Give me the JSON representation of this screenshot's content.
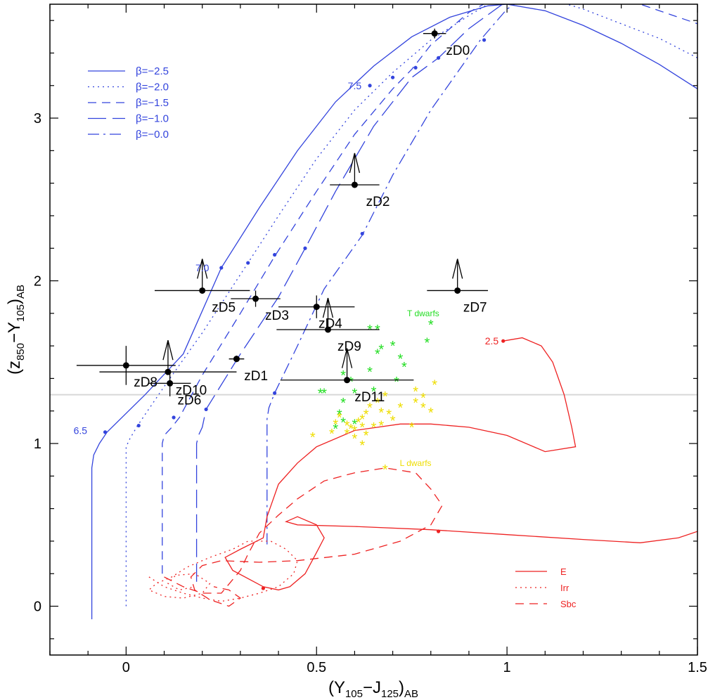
{
  "chart_data": {
    "type": "line",
    "xlabel_main": "(Y",
    "xlabel_sub1": "105",
    "xlabel_mid": "−J",
    "xlabel_sub2": "125",
    "xlabel_close": ")",
    "xlabel_sub3": "AB",
    "ylabel_main": "(z",
    "ylabel_sub1": "850",
    "ylabel_mid": "−Y",
    "ylabel_sub2": "105",
    "ylabel_close": ")",
    "ylabel_sub3": "AB",
    "xlim": [
      -0.2,
      1.5
    ],
    "ylim": [
      -0.3,
      3.7
    ],
    "x_ticks": [
      0,
      0.5,
      1,
      1.5
    ],
    "x_tick_labels": [
      "0",
      "0.5",
      "1",
      "1.5"
    ],
    "y_ticks": [
      0,
      1,
      2,
      3
    ],
    "y_tick_labels": [
      "0",
      "1",
      "2",
      "3"
    ],
    "grid": false,
    "hline": 1.3,
    "colors": {
      "blue": "#3344dd",
      "red": "#ee2222",
      "green": "#22dd22",
      "yellow": "#eedd00",
      "black": "#000000",
      "hline": "#d8d8d8"
    },
    "legend_beta": [
      {
        "label": "β=−2.5",
        "dash": "solid"
      },
      {
        "label": "β=−2.0",
        "dash": "dotted"
      },
      {
        "label": "β=−1.5",
        "dash": "dash"
      },
      {
        "label": "β=−1.0",
        "dash": "longdash"
      },
      {
        "label": "β=−0.0",
        "dash": "dashdot"
      }
    ],
    "legend_galaxy": [
      {
        "label": "E",
        "dash": "solid"
      },
      {
        "label": "Irr",
        "dash": "dotted"
      },
      {
        "label": "Sbc",
        "dash": "dash"
      }
    ],
    "redshift_labels": [
      {
        "text": "6.5",
        "x": -0.12,
        "y": 1.08
      },
      {
        "text": "7.0",
        "x": 0.2,
        "y": 2.08
      },
      {
        "text": "7.5",
        "x": 0.6,
        "y": 3.2
      },
      {
        "text": "2.5",
        "x": 0.96,
        "y": 1.63
      }
    ],
    "class_labels": [
      {
        "text": "T dwarfs",
        "x": 0.78,
        "y": 1.8
      },
      {
        "text": "L dwarfs",
        "x": 0.76,
        "y": 0.88
      }
    ],
    "beta_tracks": [
      {
        "name": "β=−2.5",
        "dash": "solid",
        "points": [
          [
            -0.09,
            -0.08
          ],
          [
            -0.09,
            0.85
          ],
          [
            -0.085,
            0.93
          ],
          [
            -0.07,
            1.0
          ],
          [
            -0.05,
            1.07
          ],
          [
            0.05,
            1.3
          ],
          [
            0.15,
            1.55
          ],
          [
            0.25,
            2.08
          ],
          [
            0.35,
            2.45
          ],
          [
            0.45,
            2.8
          ],
          [
            0.55,
            3.1
          ],
          [
            0.65,
            3.32
          ],
          [
            0.75,
            3.5
          ],
          [
            0.85,
            3.62
          ],
          [
            0.95,
            3.69
          ],
          [
            1.0,
            3.7
          ],
          [
            1.1,
            3.66
          ],
          [
            1.2,
            3.57
          ],
          [
            1.3,
            3.46
          ],
          [
            1.4,
            3.33
          ],
          [
            1.5,
            3.18
          ]
        ],
        "dots": [
          [
            -0.055,
            1.07
          ],
          [
            0.25,
            2.08
          ],
          [
            0.64,
            3.2
          ]
        ]
      },
      {
        "name": "β=−2.0",
        "dash": "dotted",
        "points": [
          [
            0.0,
            0.0
          ],
          [
            0.0,
            0.98
          ],
          [
            0.01,
            1.03
          ],
          [
            0.03,
            1.11
          ],
          [
            0.1,
            1.35
          ],
          [
            0.2,
            1.68
          ],
          [
            0.32,
            2.11
          ],
          [
            0.4,
            2.4
          ],
          [
            0.5,
            2.75
          ],
          [
            0.6,
            3.05
          ],
          [
            0.7,
            3.28
          ],
          [
            0.8,
            3.48
          ],
          [
            0.9,
            3.63
          ],
          [
            0.95,
            3.7
          ],
          [
            1.02,
            3.76
          ],
          [
            1.05,
            3.76
          ],
          [
            1.1,
            3.74
          ],
          [
            1.2,
            3.67
          ],
          [
            1.3,
            3.58
          ],
          [
            1.4,
            3.49
          ],
          [
            1.5,
            3.37
          ]
        ],
        "dots": [
          [
            0.033,
            1.11
          ],
          [
            0.32,
            2.11
          ],
          [
            0.7,
            3.25
          ]
        ]
      },
      {
        "name": "β=−1.5",
        "dash": "dash",
        "points": [
          [
            0.095,
            0.2
          ],
          [
            0.095,
            1.0
          ],
          [
            0.1,
            1.05
          ],
          [
            0.12,
            1.1
          ],
          [
            0.14,
            1.16
          ],
          [
            0.2,
            1.42
          ],
          [
            0.3,
            1.8
          ],
          [
            0.39,
            2.15
          ],
          [
            0.5,
            2.55
          ],
          [
            0.6,
            2.9
          ],
          [
            0.7,
            3.18
          ],
          [
            0.75,
            3.3
          ],
          [
            0.8,
            3.45
          ],
          [
            0.9,
            3.65
          ],
          [
            1.0,
            3.78
          ],
          [
            1.05,
            3.8
          ],
          [
            1.2,
            3.78
          ],
          [
            1.35,
            3.7
          ],
          [
            1.5,
            3.58
          ]
        ],
        "dots": [
          [
            0.125,
            1.16
          ],
          [
            0.39,
            2.16
          ],
          [
            0.76,
            3.31
          ]
        ]
      },
      {
        "name": "β=−1.0",
        "dash": "longdash",
        "points": [
          [
            0.185,
            0.15
          ],
          [
            0.185,
            1.0
          ],
          [
            0.19,
            1.05
          ],
          [
            0.2,
            1.1
          ],
          [
            0.21,
            1.21
          ],
          [
            0.3,
            1.55
          ],
          [
            0.4,
            1.9
          ],
          [
            0.47,
            2.2
          ],
          [
            0.55,
            2.55
          ],
          [
            0.65,
            2.95
          ],
          [
            0.75,
            3.25
          ],
          [
            0.82,
            3.37
          ],
          [
            0.9,
            3.55
          ],
          [
            1.0,
            3.72
          ],
          [
            1.1,
            3.8
          ],
          [
            1.2,
            3.82
          ],
          [
            1.35,
            3.8
          ],
          [
            1.5,
            3.72
          ]
        ],
        "dots": [
          [
            0.21,
            1.21
          ],
          [
            0.47,
            2.2
          ],
          [
            0.82,
            3.37
          ]
        ]
      },
      {
        "name": "β=−0.0",
        "dash": "dashdot",
        "points": [
          [
            0.37,
            0.38
          ],
          [
            0.37,
            1.15
          ],
          [
            0.375,
            1.22
          ],
          [
            0.39,
            1.31
          ],
          [
            0.45,
            1.6
          ],
          [
            0.52,
            1.95
          ],
          [
            0.62,
            2.28
          ],
          [
            0.7,
            2.65
          ],
          [
            0.8,
            3.05
          ],
          [
            0.93,
            3.48
          ],
          [
            1.0,
            3.67
          ],
          [
            1.1,
            3.82
          ],
          [
            1.2,
            3.86
          ]
        ],
        "dots": [
          [
            0.39,
            1.31
          ],
          [
            0.62,
            2.29
          ],
          [
            0.94,
            3.48
          ]
        ]
      }
    ],
    "galaxy_tracks": [
      {
        "name": "E",
        "dash": "solid",
        "points": [
          [
            0.99,
            1.63
          ],
          [
            1.04,
            1.65
          ],
          [
            1.09,
            1.6
          ],
          [
            1.12,
            1.5
          ],
          [
            1.15,
            1.3
          ],
          [
            1.17,
            1.1
          ],
          [
            1.18,
            0.98
          ],
          [
            1.1,
            0.95
          ],
          [
            1.0,
            1.05
          ],
          [
            0.9,
            1.1
          ],
          [
            0.8,
            1.12
          ],
          [
            0.72,
            1.12
          ],
          [
            0.6,
            1.08
          ],
          [
            0.5,
            0.98
          ],
          [
            0.45,
            0.88
          ],
          [
            0.4,
            0.75
          ],
          [
            0.37,
            0.55
          ],
          [
            0.36,
            0.42
          ],
          [
            0.3,
            0.35
          ],
          [
            0.26,
            0.3
          ],
          [
            0.28,
            0.22
          ],
          [
            0.36,
            0.12
          ],
          [
            0.4,
            0.1
          ],
          [
            0.43,
            0.12
          ],
          [
            0.47,
            0.2
          ],
          [
            0.5,
            0.33
          ],
          [
            0.52,
            0.42
          ],
          [
            0.5,
            0.5
          ],
          [
            0.45,
            0.55
          ],
          [
            0.42,
            0.52
          ],
          [
            0.45,
            0.5
          ],
          [
            0.6,
            0.49
          ],
          [
            0.8,
            0.47
          ],
          [
            1.0,
            0.44
          ],
          [
            1.2,
            0.41
          ],
          [
            1.35,
            0.39
          ],
          [
            1.45,
            0.42
          ],
          [
            1.5,
            0.46
          ]
        ],
        "dots": [
          [
            0.99,
            1.63
          ],
          [
            0.82,
            0.46
          ],
          [
            0.36,
            0.11
          ]
        ]
      },
      {
        "name": "Irr",
        "dash": "dotted",
        "points": [
          [
            0.06,
            0.18
          ],
          [
            0.1,
            0.12
          ],
          [
            0.15,
            0.08
          ],
          [
            0.2,
            0.05
          ],
          [
            0.25,
            0.03
          ],
          [
            0.3,
            0.05
          ],
          [
            0.35,
            0.08
          ],
          [
            0.4,
            0.12
          ],
          [
            0.44,
            0.2
          ],
          [
            0.45,
            0.28
          ],
          [
            0.42,
            0.35
          ],
          [
            0.38,
            0.4
          ],
          [
            0.32,
            0.4
          ],
          [
            0.28,
            0.35
          ],
          [
            0.22,
            0.3
          ],
          [
            0.16,
            0.24
          ],
          [
            0.12,
            0.18
          ],
          [
            0.08,
            0.14
          ],
          [
            0.06,
            0.1
          ],
          [
            0.1,
            0.06
          ],
          [
            0.15,
            0.05
          ],
          [
            0.2,
            0.08
          ],
          [
            0.22,
            0.14
          ],
          [
            0.18,
            0.2
          ],
          [
            0.13,
            0.19
          ],
          [
            0.11,
            0.14
          ],
          [
            0.14,
            0.1
          ],
          [
            0.18,
            0.12
          ]
        ],
        "dots": []
      },
      {
        "name": "Sbc",
        "dash": "dash",
        "points": [
          [
            0.1,
            0.18
          ],
          [
            0.15,
            0.12
          ],
          [
            0.2,
            0.08
          ],
          [
            0.25,
            0.08
          ],
          [
            0.3,
            0.22
          ],
          [
            0.32,
            0.32
          ],
          [
            0.35,
            0.45
          ],
          [
            0.4,
            0.56
          ],
          [
            0.45,
            0.66
          ],
          [
            0.52,
            0.77
          ],
          [
            0.6,
            0.82
          ],
          [
            0.68,
            0.85
          ],
          [
            0.76,
            0.82
          ],
          [
            0.8,
            0.72
          ],
          [
            0.83,
            0.62
          ],
          [
            0.8,
            0.5
          ],
          [
            0.72,
            0.4
          ],
          [
            0.6,
            0.32
          ],
          [
            0.45,
            0.28
          ],
          [
            0.35,
            0.27
          ],
          [
            0.25,
            0.28
          ],
          [
            0.2,
            0.25
          ],
          [
            0.17,
            0.18
          ],
          [
            0.18,
            0.1
          ],
          [
            0.22,
            0.04
          ],
          [
            0.27,
            0.0
          ],
          [
            0.3,
            0.05
          ],
          [
            0.27,
            0.1
          ],
          [
            0.23,
            0.12
          ]
        ],
        "dots": []
      }
    ],
    "objects": [
      {
        "name": "zD0",
        "x": 0.81,
        "y": 3.52,
        "xerr": 0.03,
        "yerr": 0.03,
        "lower_limit": false,
        "lx": 0.84,
        "ly": 3.42
      },
      {
        "name": "zD1",
        "x": 0.29,
        "y": 1.52,
        "xerr": 0.02,
        "yerr": 0.02,
        "lower_limit": false,
        "lx": 0.31,
        "ly": 1.42
      },
      {
        "name": "zD2",
        "x": 0.6,
        "y": 2.59,
        "xerr": 0.065,
        "yerr": 0,
        "lower_limit": true,
        "lx": 0.63,
        "ly": 2.49
      },
      {
        "name": "zD3",
        "x": 0.34,
        "y": 1.89,
        "xerr": 0.065,
        "yerr": 0.05,
        "lower_limit": false,
        "lx": 0.365,
        "ly": 1.79
      },
      {
        "name": "zD4",
        "x": 0.5,
        "y": 1.84,
        "xerr": 0.1,
        "yerr": 0.07,
        "lower_limit": false,
        "lx": 0.505,
        "ly": 1.74
      },
      {
        "name": "zD5",
        "x": 0.2,
        "y": 1.94,
        "xerr": 0.125,
        "yerr": 0,
        "lower_limit": true,
        "lx": 0.225,
        "ly": 1.84
      },
      {
        "name": "zD6",
        "x": 0.115,
        "y": 1.37,
        "xerr": 0.055,
        "yerr": 0.08,
        "lower_limit": false,
        "lx": 0.135,
        "ly": 1.27
      },
      {
        "name": "zD7",
        "x": 0.87,
        "y": 1.94,
        "xerr": 0.08,
        "yerr": 0,
        "lower_limit": true,
        "lx": 0.885,
        "ly": 1.84
      },
      {
        "name": "zD8",
        "x": 0.0,
        "y": 1.48,
        "xerr": 0.13,
        "yerr": 0.12,
        "lower_limit": false,
        "lx": 0.02,
        "ly": 1.38
      },
      {
        "name": "zD9",
        "x": 0.53,
        "y": 1.7,
        "xerr": 0.135,
        "yerr": 0,
        "lower_limit": true,
        "lx": 0.555,
        "ly": 1.6
      },
      {
        "name": "zD10",
        "x": 0.11,
        "y": 1.44,
        "xerr": 0.18,
        "yerr": 0,
        "lower_limit": true,
        "lx": 0.13,
        "ly": 1.33
      },
      {
        "name": "zD11",
        "x": 0.58,
        "y": 1.39,
        "xerr": 0.175,
        "yerr": 0,
        "lower_limit": true,
        "lx": 0.6,
        "ly": 1.29
      }
    ],
    "t_dwarfs": [
      [
        0.64,
        1.7
      ],
      [
        0.66,
        1.7
      ],
      [
        0.8,
        1.73
      ],
      [
        0.79,
        1.62
      ],
      [
        0.7,
        1.6
      ],
      [
        0.67,
        1.58
      ],
      [
        0.72,
        1.52
      ],
      [
        0.66,
        1.55
      ],
      [
        0.73,
        1.47
      ],
      [
        0.57,
        1.42
      ],
      [
        0.64,
        1.44
      ],
      [
        0.59,
        1.38
      ],
      [
        0.71,
        1.38
      ],
      [
        0.6,
        1.31
      ],
      [
        0.65,
        1.32
      ],
      [
        0.51,
        1.31
      ],
      [
        0.52,
        1.31
      ],
      [
        0.57,
        1.25
      ],
      [
        0.56,
        1.18
      ],
      [
        0.55,
        1.09
      ],
      [
        0.57,
        1.13
      ],
      [
        0.6,
        1.12
      ]
    ],
    "l_dwarfs": [
      [
        0.68,
        1.29
      ],
      [
        0.76,
        1.32
      ],
      [
        0.78,
        1.28
      ],
      [
        0.76,
        1.25
      ],
      [
        0.81,
        1.36
      ],
      [
        0.78,
        1.22
      ],
      [
        0.8,
        1.19
      ],
      [
        0.72,
        1.22
      ],
      [
        0.66,
        1.25
      ],
      [
        0.64,
        1.22
      ],
      [
        0.63,
        1.18
      ],
      [
        0.67,
        1.19
      ],
      [
        0.69,
        1.18
      ],
      [
        0.62,
        1.15
      ],
      [
        0.61,
        1.13
      ],
      [
        0.59,
        1.09
      ],
      [
        0.58,
        1.11
      ],
      [
        0.6,
        1.08
      ],
      [
        0.63,
        1.05
      ],
      [
        0.62,
        1.1
      ],
      [
        0.58,
        1.06
      ],
      [
        0.56,
        1.16
      ],
      [
        0.6,
        1.03
      ],
      [
        0.55,
        1.12
      ],
      [
        0.62,
        0.99
      ],
      [
        0.54,
        1.06
      ],
      [
        0.65,
        1.1
      ],
      [
        0.67,
        1.11
      ],
      [
        0.7,
        1.14
      ],
      [
        0.75,
        1.1
      ],
      [
        0.49,
        1.04
      ],
      [
        0.68,
        0.84
      ]
    ]
  }
}
